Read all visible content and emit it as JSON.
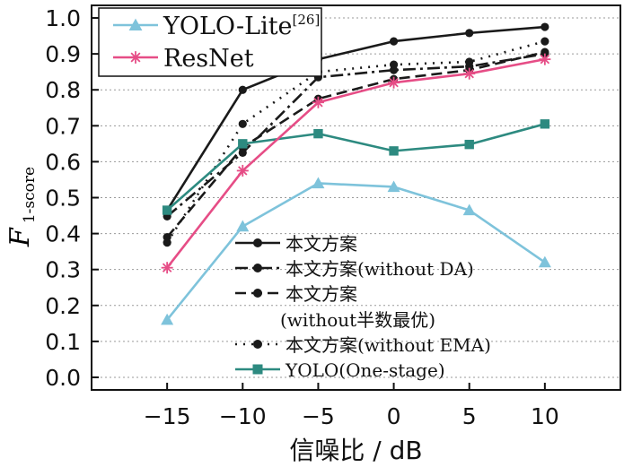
{
  "chart_data": {
    "type": "line",
    "title": "",
    "xlabel": "信噪比 / dB",
    "ylabel": {
      "main": "F",
      "sub": "1-score"
    },
    "x": [
      -15,
      -10,
      -5,
      0,
      5,
      10
    ],
    "xticks": [
      "−15",
      "−10",
      "−5",
      "0",
      "5",
      "10"
    ],
    "yticks": [
      "0.0",
      "0.1",
      "0.2",
      "0.3",
      "0.4",
      "0.5",
      "0.6",
      "0.7",
      "0.8",
      "0.9",
      "1.0"
    ],
    "xlim": [
      -20,
      15
    ],
    "ylim": [
      -0.035,
      1.035
    ],
    "grid": "horizontal dotted",
    "series": [
      {
        "name": "本文方案",
        "values": [
          0.465,
          0.8,
          0.885,
          0.935,
          0.958,
          0.975
        ],
        "color": "#1a1a1a",
        "marker": "circle",
        "dash": "solid"
      },
      {
        "name": "本文方案(without DA)",
        "values": [
          0.448,
          0.625,
          0.835,
          0.855,
          0.865,
          0.9
        ],
        "color": "#1a1a1a",
        "marker": "circle",
        "dash": "dashdot"
      },
      {
        "name": "本文方案(without半数最优)",
        "values": [
          0.39,
          0.64,
          0.775,
          0.83,
          0.855,
          0.905
        ],
        "color": "#1a1a1a",
        "marker": "circle",
        "dash": "dashed"
      },
      {
        "name": "本文方案(without EMA)",
        "values": [
          0.375,
          0.705,
          0.85,
          0.87,
          0.878,
          0.935
        ],
        "color": "#1a1a1a",
        "marker": "circle",
        "dash": "dotted"
      },
      {
        "name": "YOLO(One-stage)",
        "values": [
          0.465,
          0.65,
          0.678,
          0.63,
          0.648,
          0.705
        ],
        "color": "#2d8a80",
        "marker": "square",
        "dash": "solid"
      },
      {
        "name": "YOLO-Lite",
        "name_suffix": "[26]",
        "values": [
          0.16,
          0.42,
          0.54,
          0.53,
          0.465,
          0.32
        ],
        "color": "#7ec3db",
        "marker": "triangle",
        "dash": "solid"
      },
      {
        "name": "ResNet",
        "values": [
          0.305,
          0.575,
          0.765,
          0.82,
          0.845,
          0.885
        ],
        "color": "#e64d86",
        "marker": "star",
        "dash": "solid"
      }
    ],
    "legend_top": [
      "YOLO-Lite",
      "ResNet"
    ],
    "legend_bottom": [
      "本文方案",
      "本文方案(without DA)",
      "本文方案(without半数最优)",
      "本文方案(without EMA)",
      "YOLO(One-stage)"
    ],
    "legend_bottom_wrap": {
      "本文方案(without半数最优)": [
        "本文方案",
        "(without半数最优)"
      ]
    }
  }
}
